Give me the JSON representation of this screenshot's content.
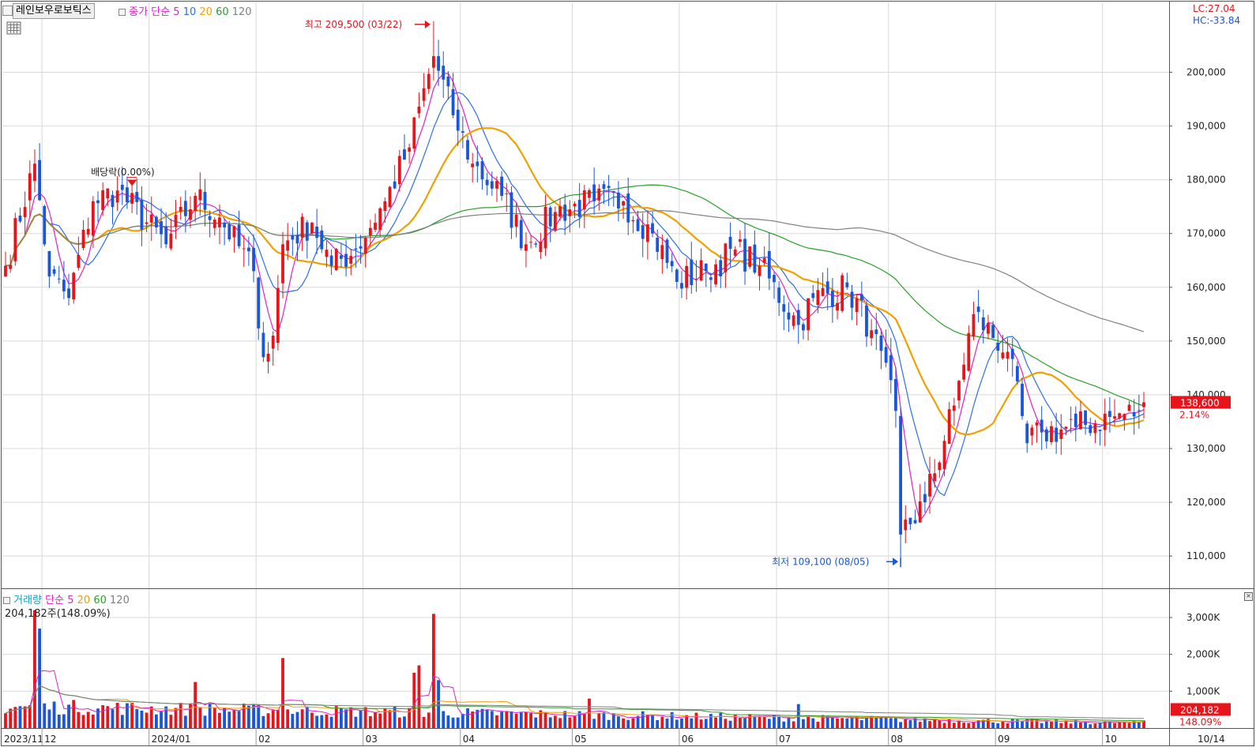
{
  "header": {
    "symbol_name": "레인보우로보틱스",
    "price_legend": {
      "label": "종가 단순",
      "periods": [
        "5",
        "10",
        "20",
        "60",
        "120"
      ]
    },
    "volume_legend": {
      "label": "거래량",
      "type": "단순",
      "periods": [
        "5",
        "20",
        "60",
        "120"
      ]
    },
    "volume_info": "204,182주(148.09%)",
    "lc": "LC:27.04",
    "hc": "HC:-33.84"
  },
  "annotations": {
    "high": "최고 209,500 (03/22)",
    "low": "최저 109,100 (08/05)",
    "dividend": "배당락(0.00%)"
  },
  "last_price": {
    "price": "138,600",
    "change": "2.14%"
  },
  "last_volume": {
    "volume": "204,182",
    "ratio": "148.09%"
  },
  "colors": {
    "up": "#e8141c",
    "down": "#1a56db",
    "ma5": "#e020c8",
    "ma10": "#2e6ee8",
    "ma20": "#f0a000",
    "ma60": "#28a028",
    "ma120": "#808080"
  },
  "chart_data": [
    {
      "type": "candlestick",
      "title": "레인보우로보틱스",
      "y_axis_ticks": [
        "110,000",
        "120,000",
        "130,000",
        "140,000",
        "150,000",
        "160,000",
        "170,000",
        "180,000",
        "190,000",
        "200,000"
      ],
      "ylim": [
        104000,
        213000
      ],
      "x_axis_ticks": [
        "2023/11",
        "12",
        "2024/01",
        "02",
        "03",
        "04",
        "05",
        "06",
        "07",
        "08",
        "09",
        "10",
        "10/14"
      ],
      "high_point": {
        "value": 209500,
        "date": "03/22"
      },
      "low_point": {
        "value": 109100,
        "date": "08/05"
      },
      "last_close": 138600,
      "anchors": [
        [
          "2023/11/21",
          164000
        ],
        [
          "2023/11/29",
          183000
        ],
        [
          "2023/12/04",
          162000
        ],
        [
          "2023/12/08",
          158000
        ],
        [
          "2023/12/15",
          176000
        ],
        [
          "2023/12/22",
          178000
        ],
        [
          "2024/01/05",
          168000
        ],
        [
          "2024/01/15",
          177000
        ],
        [
          "2024/01/22",
          173000
        ],
        [
          "2024/01/31",
          163000
        ],
        [
          "2024/02/02",
          147000
        ],
        [
          "2024/02/06",
          151000
        ],
        [
          "2024/02/08",
          168000
        ],
        [
          "2024/02/16",
          172000
        ],
        [
          "2024/02/22",
          164000
        ],
        [
          "2024/02/29",
          167000
        ],
        [
          "2024/03/08",
          176000
        ],
        [
          "2024/03/15",
          186000
        ],
        [
          "2024/03/22",
          203000
        ],
        [
          "2024/03/28",
          192000
        ],
        [
          "2024/04/03",
          183000
        ],
        [
          "2024/04/11",
          177000
        ],
        [
          "2024/04/18",
          168000
        ],
        [
          "2024/04/26",
          174000
        ],
        [
          "2024/05/08",
          176000
        ],
        [
          "2024/05/16",
          176000
        ],
        [
          "2024/05/24",
          170000
        ],
        [
          "2024/05/31",
          161000
        ],
        [
          "2024/06/10",
          163000
        ],
        [
          "2024/06/18",
          167000
        ],
        [
          "2024/06/25",
          164000
        ],
        [
          "2024/07/05",
          153000
        ],
        [
          "2024/07/10",
          158000
        ],
        [
          "2024/07/19",
          160000
        ],
        [
          "2024/07/26",
          152000
        ],
        [
          "2024/08/02",
          137000
        ],
        [
          "2024/08/05",
          114000
        ],
        [
          "2024/08/12",
          120000
        ],
        [
          "2024/08/20",
          138000
        ],
        [
          "2024/08/26",
          155000
        ],
        [
          "2024/09/04",
          148000
        ],
        [
          "2024/09/10",
          131000
        ],
        [
          "2024/09/13",
          133000
        ],
        [
          "2024/09/24",
          134000
        ],
        [
          "2024/10/04",
          136000
        ],
        [
          "2024/10/11",
          137000
        ],
        [
          "2024/10/14",
          138600
        ]
      ],
      "series": [
        {
          "name": "5"
        },
        {
          "name": "10"
        },
        {
          "name": "20"
        },
        {
          "name": "60"
        },
        {
          "name": "120"
        }
      ]
    },
    {
      "type": "bar",
      "title": "거래량",
      "y_axis_ticks": [
        "1,000K",
        "2,000K",
        "3,000K"
      ],
      "ylim": [
        0,
        3600
      ],
      "last_value": 204182,
      "spikes": [
        [
          "2023/11/29",
          3200
        ],
        [
          "2023/11/30",
          2700
        ],
        [
          "2024/02/08",
          1900
        ],
        [
          "2024/03/18",
          1500
        ],
        [
          "2024/03/19",
          1700
        ],
        [
          "2024/03/22",
          3100
        ],
        [
          "2024/03/25",
          1300
        ],
        [
          "2024/01/15",
          1250
        ],
        [
          "2024/05/07",
          800
        ],
        [
          "2024/07/05",
          650
        ]
      ],
      "series": [
        {
          "name": "5"
        },
        {
          "name": "20"
        },
        {
          "name": "60"
        },
        {
          "name": "120"
        }
      ]
    }
  ]
}
